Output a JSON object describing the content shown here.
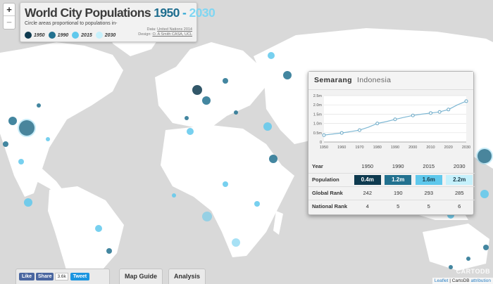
{
  "title": {
    "prefix": "World City Populations",
    "year_start": "1950",
    "separator": "-",
    "year_end": "2030",
    "subtitle": "Circle areas proportional to populations in-",
    "credit_data_prefix": "Data:",
    "credit_data_link": "United Nations 2014",
    "credit_design_prefix": "Design:",
    "credit_design_link": "O. A Smith CASA, UCL"
  },
  "legend": [
    {
      "label": "1950",
      "color": "#0e3a4f"
    },
    {
      "label": "1990",
      "color": "#22718f"
    },
    {
      "label": "2015",
      "color": "#5fc8ec"
    },
    {
      "label": "2030",
      "color": "#c6f1fc"
    }
  ],
  "zoom": {
    "in_label": "+",
    "out_label": "−"
  },
  "popup": {
    "city": "Semarang",
    "country": "Indonesia",
    "table": {
      "header_label": "Year",
      "years": [
        "1950",
        "1990",
        "2015",
        "2030"
      ],
      "population_label": "Population",
      "population": [
        "0.4m",
        "1.2m",
        "1.6m",
        "2.2m"
      ],
      "population_colors": [
        "#0e3a4f",
        "#22718f",
        "#5fc8ec",
        "#c6f1fc"
      ],
      "global_rank_label": "Global Rank",
      "global_rank": [
        "242",
        "190",
        "293",
        "285"
      ],
      "national_rank_label": "National Rank",
      "national_rank": [
        "4",
        "5",
        "5",
        "6"
      ]
    }
  },
  "chart_data": {
    "type": "line",
    "x": [
      1950,
      1955,
      1960,
      1965,
      1970,
      1975,
      1980,
      1985,
      1990,
      1995,
      2000,
      2005,
      2010,
      2015,
      2020,
      2025,
      2030
    ],
    "series": [
      {
        "values": [
          0.37,
          0.43,
          0.49,
          0.56,
          0.64,
          0.8,
          1.0,
          1.1,
          1.22,
          1.33,
          1.43,
          1.5,
          1.56,
          1.62,
          1.75,
          2.0,
          2.2
        ]
      }
    ],
    "xticks": [
      "1950",
      "1960",
      "1970",
      "1980",
      "1990",
      "2000",
      "2010",
      "2020",
      "2030"
    ],
    "yticks": [
      "0",
      "0.5m",
      "1.0m",
      "1.5m",
      "2.0m",
      "2.5m"
    ],
    "ylim": [
      0,
      2.5
    ],
    "grid": true
  },
  "bottom": {
    "like_label": "Like",
    "share_label": "Share",
    "share_count": "3.6k",
    "tweet_label": "Tweet",
    "map_guide_label": "Map Guide",
    "analysis_label": "Analysis"
  },
  "watermark": "CARTODB",
  "attribution": {
    "leaflet": "Leaflet",
    "sep": "|",
    "cartodb": "CartoDB",
    "attr": "attribution"
  }
}
